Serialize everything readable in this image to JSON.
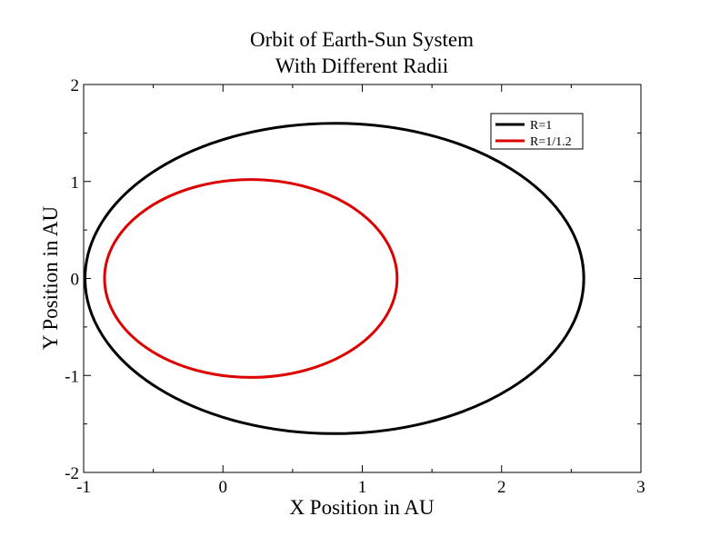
{
  "chart_data": {
    "type": "line",
    "title": "Orbit of Earth-Sun System",
    "subtitle": "With Different Radii",
    "xlabel": "X Position in AU",
    "ylabel": "Y Position in AU",
    "xlim": [
      -1,
      3
    ],
    "ylim": [
      -2,
      2
    ],
    "x_ticks": [
      "-1",
      "0",
      "1",
      "2",
      "3"
    ],
    "y_ticks": [
      "-2",
      "-1",
      "0",
      "1",
      "2"
    ],
    "grid": false,
    "legend_position": "top-right",
    "series": [
      {
        "name": "R=1",
        "color": "#000000",
        "shape": "ellipse",
        "center": [
          0.8,
          0.0
        ],
        "semi_axes": [
          1.79,
          1.6
        ]
      },
      {
        "name": "R=1/1.2",
        "color": "#dd0000",
        "shape": "ellipse",
        "center": [
          0.2,
          0.0
        ],
        "semi_axes": [
          1.05,
          1.02
        ]
      }
    ]
  }
}
